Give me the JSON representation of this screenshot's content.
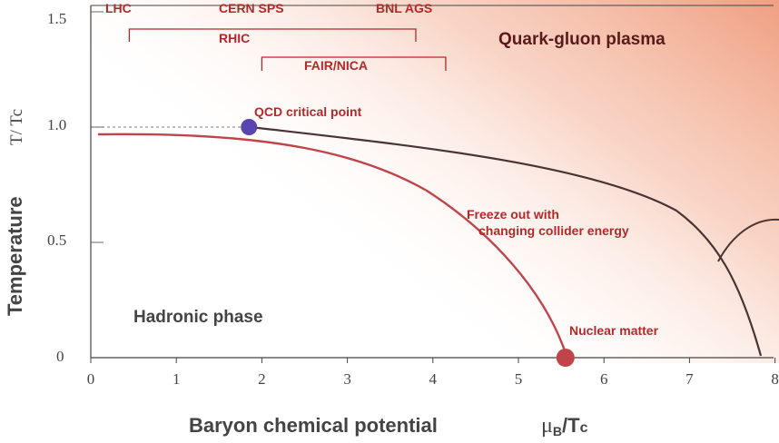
{
  "axes": {
    "x_ticks": [
      "0",
      "1",
      "2",
      "3",
      "4",
      "5",
      "6",
      "7",
      "8"
    ],
    "y_ticks": [
      "0",
      "0.5",
      "1.0",
      "1.5"
    ],
    "x_title": "Baryon chemical potential",
    "x_unit_main": "μ",
    "x_unit_sub": "B",
    "x_unit_rest": "/T",
    "x_unit_c": "c",
    "y_title": "Temperature",
    "y_unit": "T/ Tc",
    "xlim": [
      0,
      8
    ],
    "ylim": [
      0,
      1.5
    ]
  },
  "experiments": {
    "lhc": "LHC",
    "cern_sps": "CERN SPS",
    "bnl_ags": "BNL AGS",
    "rhic": "RHIC",
    "fair_nica": "FAIR/NICA",
    "rhic_range": [
      0.45,
      3.8
    ],
    "fair_range": [
      2.0,
      4.15
    ]
  },
  "regions": {
    "qgp": "Quark-gluon plasma",
    "hadronic": "Hadronic phase"
  },
  "points": {
    "critical_point_label": "QCD critical point",
    "critical_point": [
      1.85,
      1.0
    ],
    "nuclear_matter_label": "Nuclear matter",
    "nuclear_matter": [
      5.55,
      0.0
    ]
  },
  "freeze_out": {
    "line1": "Freeze out with",
    "line2": "changing collider energy"
  },
  "colors": {
    "freeze_out": "#c0444a",
    "phase_boundary": "#4a3333",
    "critical_point": "#5a44b0",
    "nuclear_matter": "#c0444a",
    "qgp_tint": "#ee9a7a"
  }
}
